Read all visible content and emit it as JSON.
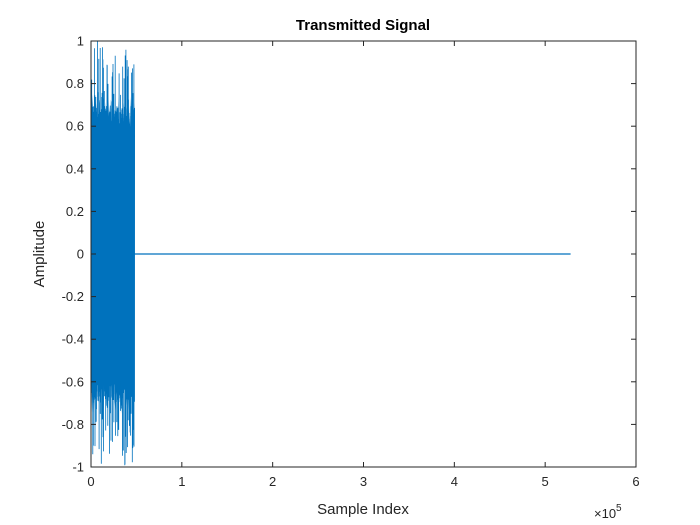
{
  "chart_data": {
    "type": "line",
    "title": "Transmitted Signal",
    "xlabel": "Sample Index",
    "ylabel": "Amplitude",
    "xlim": [
      0,
      600000
    ],
    "ylim": [
      -1,
      1
    ],
    "x_ticks": [
      0,
      100000,
      200000,
      300000,
      400000,
      500000,
      600000
    ],
    "x_tick_labels": [
      "0",
      "1",
      "2",
      "3",
      "4",
      "5",
      "6"
    ],
    "x_exponent_label": "×10",
    "x_exponent_power": "5",
    "y_ticks": [
      -1,
      -0.8,
      -0.6,
      -0.4,
      -0.2,
      0,
      0.2,
      0.4,
      0.6,
      0.8,
      1
    ],
    "y_tick_labels": [
      "-1",
      "-0.8",
      "-0.6",
      "-0.4",
      "-0.2",
      "0",
      "0.2",
      "0.4",
      "0.6",
      "0.8",
      "1"
    ],
    "grid": false,
    "line_color": "#0072BD",
    "series": [
      {
        "segments": [
          {
            "kind": "burst",
            "x_range": [
              0,
              48000
            ],
            "amplitude_range": [
              -1,
              1
            ]
          },
          {
            "kind": "flat",
            "x_range": [
              48000,
              528000
            ],
            "value": 0
          }
        ]
      }
    ]
  }
}
